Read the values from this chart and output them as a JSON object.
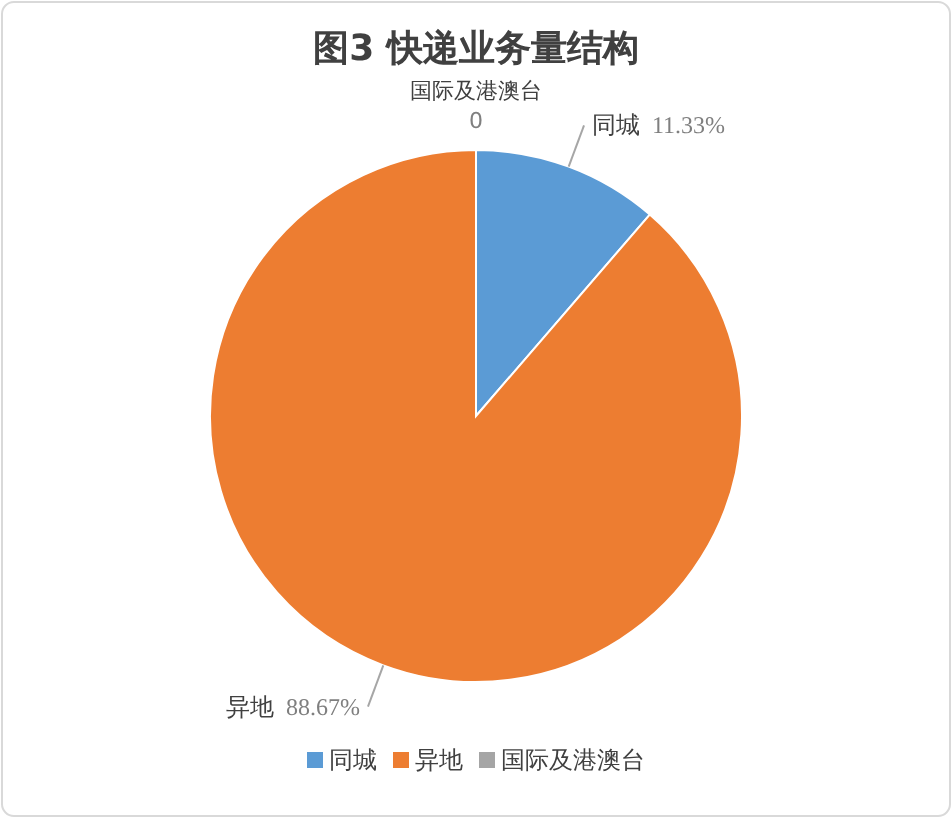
{
  "chart_data": {
    "type": "pie",
    "title": "图3  快递业务量结构",
    "categories": [
      "同城",
      "异地",
      "国际及港澳台"
    ],
    "values": [
      11.33,
      88.67,
      0
    ],
    "value_labels": [
      "11.33%",
      "88.67%",
      "0"
    ],
    "colors": [
      "#5b9bd5",
      "#ed7d31",
      "#a5a5a5"
    ],
    "legend": "bottom"
  }
}
